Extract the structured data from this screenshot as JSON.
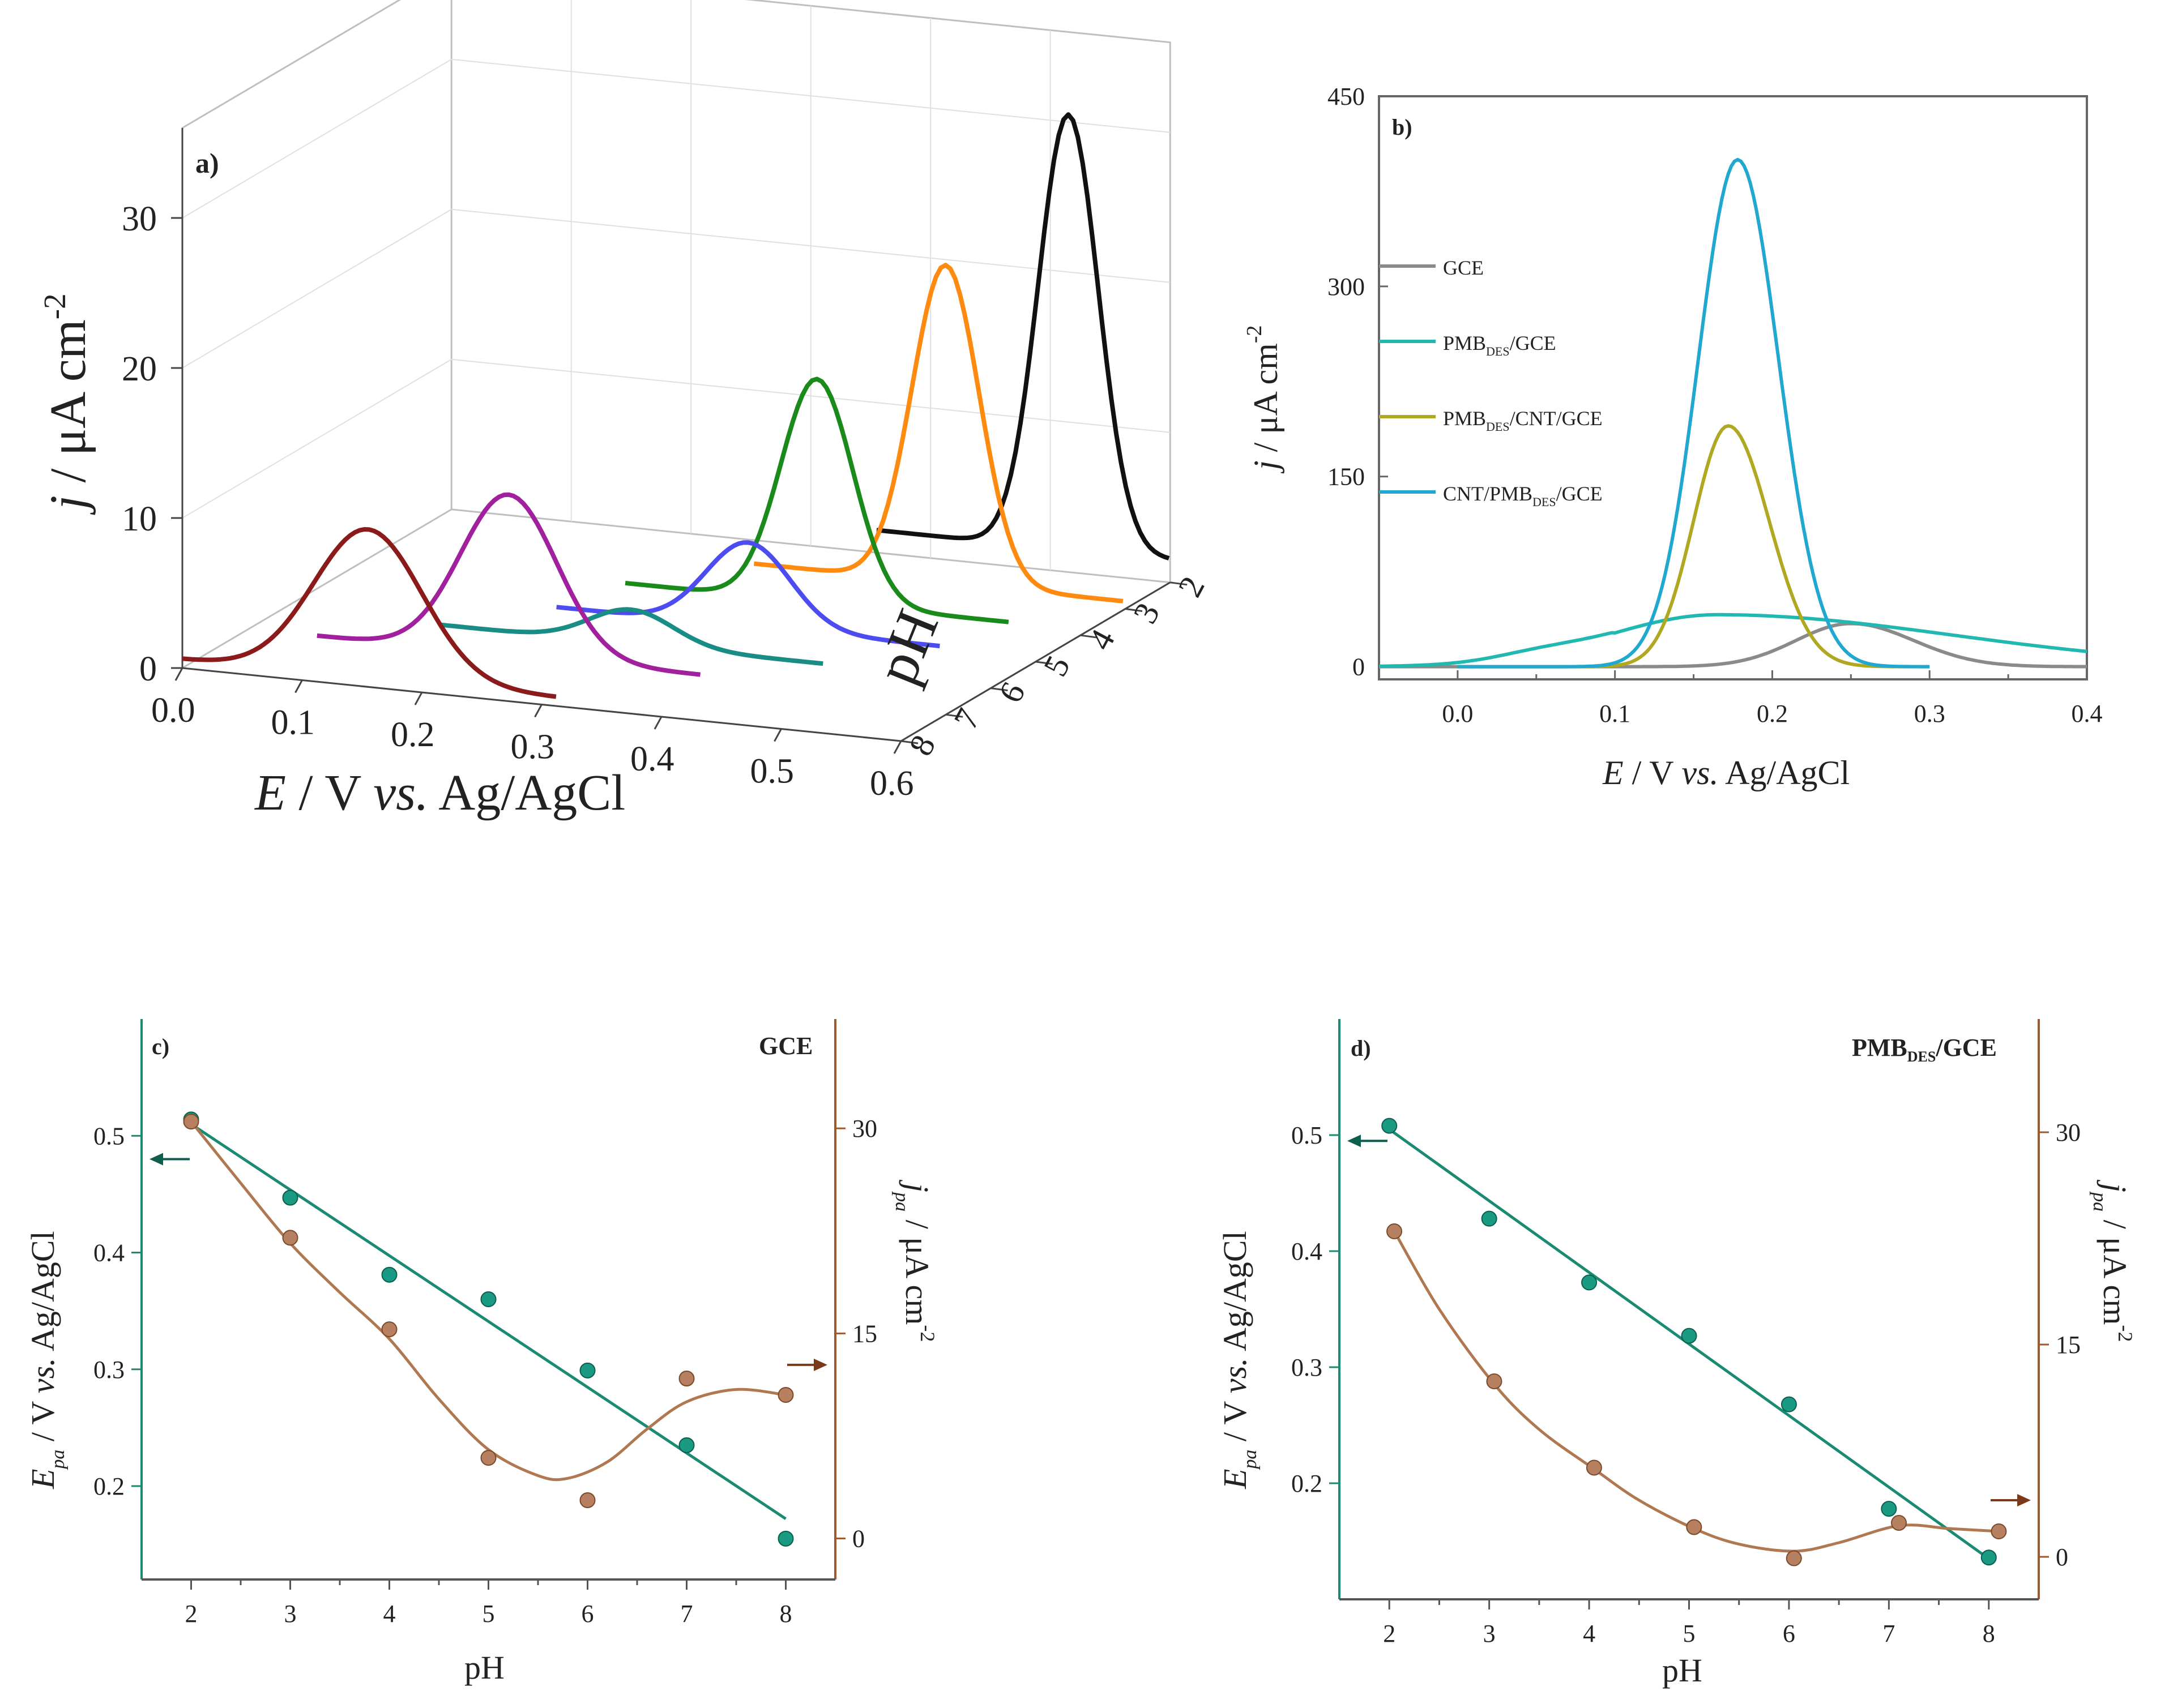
{
  "chart_data": [
    {
      "id": "a",
      "type": "line",
      "panel_label": "a)",
      "xlabel_italic": "E",
      "xlabel_rest": " / V ",
      "xlabel_vs": "vs.",
      "xlabel_ref": " Ag/AgCl",
      "ylabel_italic": "j",
      "ylabel_rest": " / μA cm",
      "ylabel_sup": "-2",
      "zlabel": "pH",
      "xticks": [
        "0.0",
        "0.1",
        "0.2",
        "0.3",
        "0.4",
        "0.5",
        "0.6"
      ],
      "yticks": [
        "0",
        "10",
        "20",
        "30"
      ],
      "zticks": [
        "8",
        "7",
        "6",
        "5",
        "4",
        "3",
        "2"
      ],
      "series": [
        {
          "name": "pH 8",
          "color": "#8b1a1a",
          "ph": 8,
          "peak_E": 0.155,
          "peak_j": 10.5,
          "base_j": 0.6,
          "sigma": 0.045
        },
        {
          "name": "pH 7",
          "color": "#a0209e",
          "ph": 7,
          "peak_E": 0.235,
          "peak_j": 11.7,
          "base_j": 1.0,
          "sigma": 0.04
        },
        {
          "name": "pH 6",
          "color": "#1a8c86",
          "ph": 6,
          "peak_E": 0.3,
          "peak_j": 2.8,
          "base_j": 0.5,
          "sigma": 0.035
        },
        {
          "name": "pH 5",
          "color": "#4c4cf0",
          "ph": 5,
          "peak_E": 0.36,
          "peak_j": 6.0,
          "base_j": 0.4,
          "sigma": 0.035
        },
        {
          "name": "pH 4",
          "color": "#1a8a1a",
          "ph": 4,
          "peak_E": 0.38,
          "peak_j": 15.3,
          "base_j": 0.4,
          "sigma": 0.03
        },
        {
          "name": "pH 3",
          "color": "#ff8a10",
          "ph": 3,
          "peak_E": 0.45,
          "peak_j": 21.7,
          "base_j": 0.5,
          "sigma": 0.028
        },
        {
          "name": "pH 2",
          "color": "#111111",
          "ph": 2,
          "peak_E": 0.515,
          "peak_j": 30.5,
          "base_j": 1.5,
          "sigma": 0.025
        }
      ]
    },
    {
      "id": "b",
      "type": "line",
      "panel_label": "b)",
      "xlabel_italic": "E",
      "xlabel_rest": " / V ",
      "xlabel_vs": "vs.",
      "xlabel_ref": " Ag/AgCl",
      "ylabel_italic": "j",
      "ylabel_rest": " / μA cm",
      "ylabel_sup": "-2",
      "xlim": [
        -0.05,
        0.4
      ],
      "ylim": [
        -10,
        450
      ],
      "xticks": [
        "0.0",
        "0.1",
        "0.2",
        "0.3",
        "0.4"
      ],
      "yticks": [
        "0",
        "150",
        "300",
        "450"
      ],
      "series": [
        {
          "name": "GCE",
          "color": "#8a8a8a",
          "peak_E": 0.25,
          "peak_j": 34,
          "base_j": 0,
          "sigma_l": 0.035,
          "sigma_r": 0.04,
          "x_range": [
            -0.05,
            0.4
          ]
        },
        {
          "name": "PMB",
          "sub": "DES",
          "rest": "/GCE",
          "color": "#20b8b0",
          "peak_E": 0.165,
          "peak_j": 41,
          "base_j": 0,
          "sigma_l": 0.07,
          "sigma_r": 0.15,
          "x_range": [
            -0.05,
            0.4
          ]
        },
        {
          "name": "PMB",
          "sub": "DES",
          "rest": "/CNT/GCE",
          "color": "#b0a820",
          "peak_E": 0.172,
          "peak_j": 190,
          "base_j": 0,
          "sigma_l": 0.022,
          "sigma_r": 0.026,
          "x_range": [
            0.0,
            0.3
          ]
        },
        {
          "name": "CNT/PMB",
          "sub": "DES",
          "rest": "/GCE",
          "color": "#20a8d0",
          "peak_E": 0.178,
          "peak_j": 400,
          "base_j": 0,
          "sigma_l": 0.025,
          "sigma_r": 0.026,
          "x_range": [
            0.0,
            0.3
          ]
        }
      ]
    },
    {
      "id": "c",
      "type": "scatter",
      "panel_label": "c)",
      "title": "GCE",
      "xlabel": "pH",
      "y1label_italic": "E",
      "y1label_sub": "pa",
      "y1label_rest": " / V ",
      "y1label_vs": "vs.",
      "y1label_ref": " Ag/AgCl",
      "y2label_italic": "j",
      "y2label_sub": "pa",
      "y2label_rest": " / μA cm",
      "y2label_sup": "-2",
      "xlim": [
        1.5,
        8.5
      ],
      "y1lim": [
        0.12,
        0.6
      ],
      "y2lim": [
        -3,
        38
      ],
      "xticks": [
        "2",
        "3",
        "4",
        "5",
        "6",
        "7",
        "8"
      ],
      "y1ticks": [
        "0.2",
        "0.3",
        "0.4",
        "0.5"
      ],
      "y2ticks": [
        "0",
        "15",
        "30"
      ],
      "x": [
        2,
        3,
        4,
        5,
        6,
        7,
        8
      ],
      "E_pa": [
        0.514,
        0.447,
        0.381,
        0.36,
        0.299,
        0.235,
        0.155
      ],
      "j_pa": [
        30.5,
        22.0,
        15.3,
        5.9,
        2.8,
        11.7,
        10.5
      ],
      "E_fit": [
        [
          2,
          0.51
        ],
        [
          8,
          0.172
        ]
      ],
      "j_curve": [
        [
          2,
          30.5
        ],
        [
          2.5,
          26.0
        ],
        [
          3,
          21.6
        ],
        [
          3.5,
          18.0
        ],
        [
          4,
          14.6
        ],
        [
          4.5,
          10.2
        ],
        [
          5,
          6.5
        ],
        [
          5.5,
          4.6
        ],
        [
          5.8,
          4.4
        ],
        [
          6.2,
          5.6
        ],
        [
          6.6,
          8.0
        ],
        [
          7,
          10.0
        ],
        [
          7.5,
          10.9
        ],
        [
          8,
          10.5
        ]
      ],
      "arrow_left_E": 0.48,
      "arrow_right_j": 12.7
    },
    {
      "id": "d",
      "type": "scatter",
      "panel_label": "d)",
      "title": "PMB",
      "title_sub": "DES",
      "title_rest": "/GCE",
      "xlabel": "pH",
      "y1label_italic": "E",
      "y1label_sub": "pa",
      "y1label_rest": " / V ",
      "y1label_vs": "vs.",
      "y1label_ref": " Ag/AgCl",
      "y2label_italic": "j",
      "y2label_sub": "pa",
      "y2label_rest": " / μA cm",
      "y2label_sup": "-2",
      "xlim": [
        1.5,
        8.5
      ],
      "y1lim": [
        0.1,
        0.6
      ],
      "y2lim": [
        -3,
        38
      ],
      "xticks": [
        "2",
        "3",
        "4",
        "5",
        "6",
        "7",
        "8"
      ],
      "y1ticks": [
        "0.2",
        "0.3",
        "0.4",
        "0.5"
      ],
      "y2ticks": [
        "0",
        "15",
        "30"
      ],
      "x_E": [
        2,
        3,
        4,
        5,
        6,
        7,
        8
      ],
      "E_pa": [
        0.508,
        0.428,
        0.373,
        0.327,
        0.268,
        0.178,
        0.136
      ],
      "x_j": [
        2.05,
        3.05,
        4.05,
        5.05,
        6.05,
        7.1,
        8.1
      ],
      "j_pa": [
        23.0,
        12.4,
        6.3,
        2.1,
        -0.1,
        2.4,
        1.8
      ],
      "E_fit": [
        [
          2,
          0.505
        ],
        [
          8,
          0.135
        ]
      ],
      "j_curve": [
        [
          2.05,
          23.0
        ],
        [
          2.5,
          17.5
        ],
        [
          3.05,
          12.2
        ],
        [
          3.5,
          9.0
        ],
        [
          4.05,
          6.2
        ],
        [
          4.5,
          4.0
        ],
        [
          5.05,
          2.0
        ],
        [
          5.5,
          0.9
        ],
        [
          6.05,
          0.4
        ],
        [
          6.5,
          1.0
        ],
        [
          7.1,
          2.2
        ],
        [
          7.6,
          2.0
        ],
        [
          8.1,
          1.8
        ]
      ],
      "arrow_left_E": 0.495,
      "arrow_right_j": 4.0
    }
  ]
}
